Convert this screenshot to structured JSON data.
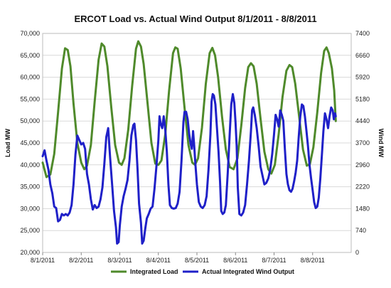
{
  "chart_data": {
    "type": "line",
    "title": "ERCOT Load vs. Actual Wind Output 8/1/2011 - 8/8/2011",
    "ylabel": "Load MW",
    "y2label": "Wind MW",
    "xlabel": "",
    "x_range_days": [
      0,
      8
    ],
    "ylim": [
      20000,
      70000
    ],
    "y2lim": [
      0,
      7400
    ],
    "x_tick_labels": [
      "8/1/2011",
      "8/2/2011",
      "8/3/2011",
      "8/4/2011",
      "8/5/2011",
      "8/6/2011",
      "8/7/2011",
      "8/8/2011"
    ],
    "y_tick_labels": [
      "20,000",
      "25,000",
      "30,000",
      "35,000",
      "40,000",
      "45,000",
      "50,000",
      "55,000",
      "60,000",
      "65,000",
      "70,000"
    ],
    "y_tick_values": [
      20000,
      25000,
      30000,
      35000,
      40000,
      45000,
      50000,
      55000,
      60000,
      65000,
      70000
    ],
    "y2_tick_labels": [
      "0",
      "740",
      "1480",
      "2220",
      "2960",
      "3700",
      "4440",
      "5180",
      "5920",
      "6660",
      "7400"
    ],
    "y2_tick_values": [
      0,
      740,
      1480,
      2220,
      2960,
      3700,
      4440,
      5180,
      5920,
      6660,
      7400
    ],
    "grid": true,
    "legend_position": "bottom",
    "series": [
      {
        "name": "Integrated Load",
        "color": "#4f8a2b",
        "axis": "left",
        "points": [
          [
            0.0,
            40500
          ],
          [
            0.1,
            37200
          ],
          [
            0.2,
            37800
          ],
          [
            0.3,
            42500
          ],
          [
            0.4,
            52000
          ],
          [
            0.5,
            62000
          ],
          [
            0.58,
            66600
          ],
          [
            0.65,
            66200
          ],
          [
            0.72,
            62500
          ],
          [
            0.8,
            54000
          ],
          [
            0.9,
            45000
          ],
          [
            1.0,
            40500
          ],
          [
            1.08,
            39000
          ],
          [
            1.15,
            39800
          ],
          [
            1.25,
            44500
          ],
          [
            1.35,
            54500
          ],
          [
            1.45,
            64000
          ],
          [
            1.53,
            67700
          ],
          [
            1.6,
            67000
          ],
          [
            1.68,
            62500
          ],
          [
            1.78,
            53000
          ],
          [
            1.88,
            44500
          ],
          [
            1.98,
            40500
          ],
          [
            2.05,
            40000
          ],
          [
            2.12,
            41500
          ],
          [
            2.22,
            48000
          ],
          [
            2.32,
            58000
          ],
          [
            2.42,
            66500
          ],
          [
            2.48,
            68200
          ],
          [
            2.55,
            67000
          ],
          [
            2.62,
            63000
          ],
          [
            2.72,
            54000
          ],
          [
            2.82,
            45000
          ],
          [
            2.92,
            40300
          ],
          [
            3.0,
            40000
          ],
          [
            3.08,
            41000
          ],
          [
            3.18,
            47000
          ],
          [
            3.28,
            57000
          ],
          [
            3.38,
            65500
          ],
          [
            3.44,
            66800
          ],
          [
            3.5,
            66500
          ],
          [
            3.58,
            62000
          ],
          [
            3.68,
            53000
          ],
          [
            3.78,
            44500
          ],
          [
            3.88,
            40500
          ],
          [
            3.95,
            40000
          ],
          [
            4.03,
            41500
          ],
          [
            4.13,
            48500
          ],
          [
            4.23,
            58500
          ],
          [
            4.33,
            65500
          ],
          [
            4.4,
            66700
          ],
          [
            4.47,
            65000
          ],
          [
            4.55,
            60000
          ],
          [
            4.65,
            51000
          ],
          [
            4.75,
            43500
          ],
          [
            4.85,
            39500
          ],
          [
            4.95,
            39000
          ],
          [
            5.05,
            41500
          ],
          [
            5.15,
            49000
          ],
          [
            5.25,
            57500
          ],
          [
            5.33,
            62300
          ],
          [
            5.4,
            63200
          ],
          [
            5.47,
            62500
          ],
          [
            5.55,
            58500
          ],
          [
            5.65,
            50500
          ],
          [
            5.75,
            43000
          ],
          [
            5.85,
            39000
          ],
          [
            5.93,
            38000
          ],
          [
            6.02,
            40000
          ],
          [
            6.12,
            47000
          ],
          [
            6.22,
            55500
          ],
          [
            6.32,
            61500
          ],
          [
            6.4,
            62800
          ],
          [
            6.47,
            62300
          ],
          [
            6.55,
            58500
          ],
          [
            6.65,
            51000
          ],
          [
            6.75,
            43500
          ],
          [
            6.85,
            39800
          ],
          [
            6.93,
            40200
          ],
          [
            7.02,
            44000
          ],
          [
            7.12,
            52000
          ],
          [
            7.22,
            61000
          ],
          [
            7.3,
            66000
          ],
          [
            7.36,
            66800
          ],
          [
            7.42,
            65500
          ],
          [
            7.5,
            62000
          ],
          [
            7.56,
            57000
          ],
          [
            7.6,
            50000
          ]
        ]
      },
      {
        "name": "Actual Integrated Wind Output",
        "color": "#1f20c8",
        "axis": "right",
        "points": [
          [
            0.0,
            3250
          ],
          [
            0.05,
            3450
          ],
          [
            0.1,
            3100
          ],
          [
            0.15,
            2800
          ],
          [
            0.2,
            2300
          ],
          [
            0.25,
            2000
          ],
          [
            0.3,
            1550
          ],
          [
            0.35,
            1500
          ],
          [
            0.4,
            1050
          ],
          [
            0.45,
            1100
          ],
          [
            0.5,
            1300
          ],
          [
            0.55,
            1250
          ],
          [
            0.6,
            1300
          ],
          [
            0.65,
            1250
          ],
          [
            0.7,
            1350
          ],
          [
            0.75,
            1600
          ],
          [
            0.8,
            2300
          ],
          [
            0.85,
            3300
          ],
          [
            0.9,
            3950
          ],
          [
            0.95,
            3800
          ],
          [
            1.0,
            3650
          ],
          [
            1.05,
            3700
          ],
          [
            1.1,
            3500
          ],
          [
            1.15,
            2650
          ],
          [
            1.2,
            2300
          ],
          [
            1.25,
            1800
          ],
          [
            1.3,
            1450
          ],
          [
            1.35,
            1600
          ],
          [
            1.4,
            1500
          ],
          [
            1.45,
            1550
          ],
          [
            1.5,
            1800
          ],
          [
            1.55,
            2200
          ],
          [
            1.6,
            3000
          ],
          [
            1.65,
            3900
          ],
          [
            1.7,
            4200
          ],
          [
            1.75,
            3200
          ],
          [
            1.8,
            2300
          ],
          [
            1.85,
            1400
          ],
          [
            1.9,
            850
          ],
          [
            1.93,
            300
          ],
          [
            1.97,
            350
          ],
          [
            2.0,
            900
          ],
          [
            2.05,
            1550
          ],
          [
            2.1,
            1900
          ],
          [
            2.15,
            2150
          ],
          [
            2.2,
            2450
          ],
          [
            2.25,
            3100
          ],
          [
            2.3,
            3950
          ],
          [
            2.35,
            4300
          ],
          [
            2.38,
            4350
          ],
          [
            2.42,
            3800
          ],
          [
            2.46,
            2800
          ],
          [
            2.5,
            1650
          ],
          [
            2.55,
            1000
          ],
          [
            2.58,
            300
          ],
          [
            2.62,
            400
          ],
          [
            2.66,
            800
          ],
          [
            2.7,
            1150
          ],
          [
            2.75,
            1300
          ],
          [
            2.8,
            1480
          ],
          [
            2.85,
            1550
          ],
          [
            2.9,
            2150
          ],
          [
            2.95,
            2900
          ],
          [
            3.0,
            3800
          ],
          [
            3.03,
            4600
          ],
          [
            3.06,
            4350
          ],
          [
            3.1,
            4200
          ],
          [
            3.14,
            4600
          ],
          [
            3.18,
            4150
          ],
          [
            3.22,
            3400
          ],
          [
            3.26,
            2300
          ],
          [
            3.3,
            1600
          ],
          [
            3.35,
            1500
          ],
          [
            3.4,
            1480
          ],
          [
            3.45,
            1500
          ],
          [
            3.5,
            1650
          ],
          [
            3.55,
            2050
          ],
          [
            3.6,
            3100
          ],
          [
            3.65,
            4400
          ],
          [
            3.68,
            4750
          ],
          [
            3.72,
            4750
          ],
          [
            3.76,
            4500
          ],
          [
            3.8,
            4000
          ],
          [
            3.84,
            3650
          ],
          [
            3.87,
            3500
          ],
          [
            3.9,
            4100
          ],
          [
            3.93,
            3600
          ],
          [
            3.96,
            3000
          ],
          [
            4.0,
            2300
          ],
          [
            4.05,
            1700
          ],
          [
            4.1,
            1550
          ],
          [
            4.15,
            1500
          ],
          [
            4.2,
            1600
          ],
          [
            4.25,
            1900
          ],
          [
            4.3,
            2800
          ],
          [
            4.35,
            4000
          ],
          [
            4.38,
            5100
          ],
          [
            4.41,
            5350
          ],
          [
            4.44,
            5300
          ],
          [
            4.48,
            5000
          ],
          [
            4.52,
            4200
          ],
          [
            4.56,
            3400
          ],
          [
            4.6,
            2400
          ],
          [
            4.63,
            1400
          ],
          [
            4.67,
            1300
          ],
          [
            4.71,
            1350
          ],
          [
            4.75,
            1600
          ],
          [
            4.8,
            2700
          ],
          [
            4.85,
            4000
          ],
          [
            4.89,
            5000
          ],
          [
            4.93,
            5350
          ],
          [
            4.97,
            5050
          ],
          [
            5.0,
            4400
          ],
          [
            5.03,
            3600
          ],
          [
            5.06,
            2200
          ],
          [
            5.1,
            1300
          ],
          [
            5.15,
            1250
          ],
          [
            5.2,
            1350
          ],
          [
            5.25,
            1600
          ],
          [
            5.3,
            2300
          ],
          [
            5.35,
            3100
          ],
          [
            5.4,
            4100
          ],
          [
            5.43,
            4800
          ],
          [
            5.46,
            4900
          ],
          [
            5.5,
            4650
          ],
          [
            5.55,
            4200
          ],
          [
            5.6,
            3600
          ],
          [
            5.65,
            2900
          ],
          [
            5.7,
            2600
          ],
          [
            5.75,
            2300
          ],
          [
            5.8,
            2350
          ],
          [
            5.85,
            2500
          ],
          [
            5.9,
            2800
          ],
          [
            5.95,
            3300
          ],
          [
            6.0,
            4000
          ],
          [
            6.04,
            4650
          ],
          [
            6.08,
            4500
          ],
          [
            6.12,
            4250
          ],
          [
            6.16,
            4800
          ],
          [
            6.2,
            4650
          ],
          [
            6.24,
            4450
          ],
          [
            6.28,
            3500
          ],
          [
            6.32,
            2650
          ],
          [
            6.36,
            2300
          ],
          [
            6.4,
            2100
          ],
          [
            6.44,
            2050
          ],
          [
            6.48,
            2150
          ],
          [
            6.52,
            2400
          ],
          [
            6.56,
            2700
          ],
          [
            6.6,
            3100
          ],
          [
            6.64,
            3900
          ],
          [
            6.68,
            4600
          ],
          [
            6.72,
            5000
          ],
          [
            6.76,
            4950
          ],
          [
            6.8,
            4600
          ],
          [
            6.84,
            4100
          ],
          [
            6.88,
            3600
          ],
          [
            6.92,
            2950
          ],
          [
            6.96,
            2500
          ],
          [
            7.0,
            2100
          ],
          [
            7.04,
            1700
          ],
          [
            7.08,
            1500
          ],
          [
            7.12,
            1550
          ],
          [
            7.16,
            1850
          ],
          [
            7.2,
            2500
          ],
          [
            7.24,
            3300
          ],
          [
            7.28,
            4100
          ],
          [
            7.32,
            4700
          ],
          [
            7.36,
            4500
          ],
          [
            7.4,
            4200
          ],
          [
            7.44,
            4600
          ],
          [
            7.48,
            4900
          ],
          [
            7.52,
            4800
          ],
          [
            7.55,
            4500
          ],
          [
            7.58,
            4700
          ],
          [
            7.6,
            4600
          ]
        ]
      }
    ]
  },
  "legend": {
    "items": [
      {
        "label": "Integrated Load",
        "color": "#4f8a2b"
      },
      {
        "label": "Actual Integrated Wind Output",
        "color": "#1f20c8"
      }
    ]
  }
}
